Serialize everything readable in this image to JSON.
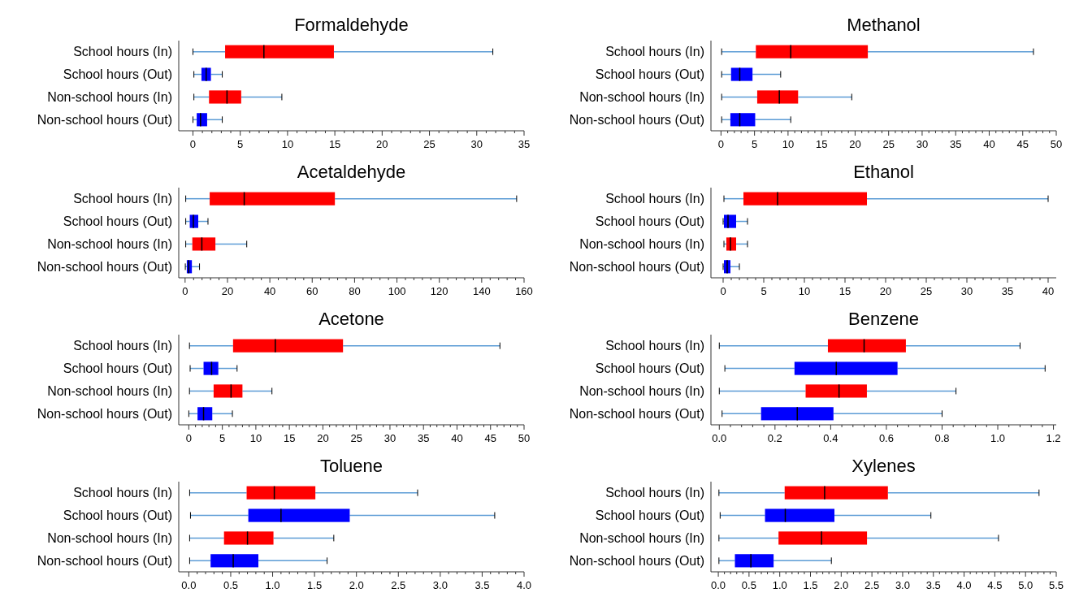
{
  "chart_data": [
    {
      "type": "box",
      "title": "Formaldehyde",
      "orientation": "horizontal",
      "categories": [
        "School hours (In)",
        "School hours (Out)",
        "Non-school hours (In)",
        "Non-school hours (Out)"
      ],
      "colors": [
        "#ff0000",
        "#0000ff",
        "#ff0000",
        "#0000ff"
      ],
      "xlim": [
        -1.5,
        35
      ],
      "xticks": [
        0,
        5,
        10,
        15,
        20,
        25,
        30,
        35
      ],
      "boxes": [
        {
          "low": 0,
          "q1": 3.4,
          "median": 7.5,
          "q3": 14.9,
          "high": 31.7
        },
        {
          "low": 0.1,
          "q1": 0.9,
          "median": 1.4,
          "q3": 1.9,
          "high": 3.1
        },
        {
          "low": 0.1,
          "q1": 1.7,
          "median": 3.6,
          "q3": 5.1,
          "high": 9.4
        },
        {
          "low": 0,
          "q1": 0.4,
          "median": 0.8,
          "q3": 1.5,
          "high": 3.1
        }
      ]
    },
    {
      "type": "box",
      "title": "Methanol",
      "orientation": "horizontal",
      "categories": [
        "School hours (In)",
        "School hours (Out)",
        "Non-school hours (In)",
        "Non-school hours (Out)"
      ],
      "colors": [
        "#ff0000",
        "#0000ff",
        "#ff0000",
        "#0000ff"
      ],
      "xlim": [
        -1.5,
        50
      ],
      "xticks": [
        0,
        5,
        10,
        15,
        20,
        25,
        30,
        35,
        40,
        45,
        50
      ],
      "boxes": [
        {
          "low": 0.1,
          "q1": 5.2,
          "median": 10.4,
          "q3": 21.9,
          "high": 46.6
        },
        {
          "low": 0.1,
          "q1": 1.5,
          "median": 2.8,
          "q3": 4.7,
          "high": 8.9
        },
        {
          "low": 0.1,
          "q1": 5.4,
          "median": 8.7,
          "q3": 11.5,
          "high": 19.5
        },
        {
          "low": 0.1,
          "q1": 1.4,
          "median": 2.8,
          "q3": 5.1,
          "high": 10.4
        }
      ]
    },
    {
      "type": "box",
      "title": "Acetaldehyde",
      "orientation": "horizontal",
      "categories": [
        "School hours (In)",
        "School hours (Out)",
        "Non-school hours (In)",
        "Non-school hours (Out)"
      ],
      "colors": [
        "#ff0000",
        "#0000ff",
        "#ff0000",
        "#0000ff"
      ],
      "xlim": [
        -3,
        160
      ],
      "xticks": [
        0,
        20,
        40,
        60,
        80,
        100,
        120,
        140,
        160
      ],
      "boxes": [
        {
          "low": 0.3,
          "q1": 11.6,
          "median": 27.9,
          "q3": 70.7,
          "high": 156.5
        },
        {
          "low": 0.3,
          "q1": 2.2,
          "median": 3.9,
          "q3": 6.2,
          "high": 10.8
        },
        {
          "low": 0.3,
          "q1": 3.4,
          "median": 7.9,
          "q3": 14.3,
          "high": 29.1
        },
        {
          "low": 0.1,
          "q1": 0.8,
          "median": 1.7,
          "q3": 3.2,
          "high": 6.8
        }
      ]
    },
    {
      "type": "box",
      "title": "Ethanol",
      "orientation": "horizontal",
      "categories": [
        "School hours (In)",
        "School hours (Out)",
        "Non-school hours (In)",
        "Non-school hours (Out)"
      ],
      "colors": [
        "#ff0000",
        "#0000ff",
        "#ff0000",
        "#0000ff"
      ],
      "xlim": [
        -1.5,
        41
      ],
      "xticks": [
        0,
        5,
        10,
        15,
        20,
        25,
        30,
        35,
        40
      ],
      "boxes": [
        {
          "low": 0.1,
          "q1": 2.5,
          "median": 6.7,
          "q3": 17.7,
          "high": 40
        },
        {
          "low": 0,
          "q1": 0.1,
          "median": 0.6,
          "q3": 1.6,
          "high": 3
        },
        {
          "low": 0.1,
          "q1": 0.4,
          "median": 0.9,
          "q3": 1.6,
          "high": 3
        },
        {
          "low": 0,
          "q1": 0.1,
          "median": 0.5,
          "q3": 0.9,
          "high": 2
        }
      ]
    },
    {
      "type": "box",
      "title": "Acetone",
      "orientation": "horizontal",
      "categories": [
        "School hours (In)",
        "School hours (Out)",
        "Non-school hours (In)",
        "Non-school hours (Out)"
      ],
      "colors": [
        "#ff0000",
        "#0000ff",
        "#ff0000",
        "#0000ff"
      ],
      "xlim": [
        -1.5,
        50
      ],
      "xticks": [
        0,
        5,
        10,
        15,
        20,
        25,
        30,
        35,
        40,
        45,
        50
      ],
      "boxes": [
        {
          "low": 0.1,
          "q1": 6.6,
          "median": 12.9,
          "q3": 23,
          "high": 46.4
        },
        {
          "low": 0.2,
          "q1": 2.2,
          "median": 3.4,
          "q3": 4.4,
          "high": 7.2
        },
        {
          "low": 0.1,
          "q1": 3.7,
          "median": 6.3,
          "q3": 8,
          "high": 12.4
        },
        {
          "low": 0,
          "q1": 1.3,
          "median": 2.2,
          "q3": 3.5,
          "high": 6.5
        }
      ]
    },
    {
      "type": "box",
      "title": "Benzene",
      "orientation": "horizontal",
      "categories": [
        "School hours (In)",
        "School hours (Out)",
        "Non-school hours (In)",
        "Non-school hours (Out)"
      ],
      "colors": [
        "#ff0000",
        "#0000ff",
        "#ff0000",
        "#0000ff"
      ],
      "xlim": [
        -0.03,
        1.21
      ],
      "xticks": [
        {
          "value": 0,
          "label": "0.0"
        },
        0.2,
        0.4,
        0.6,
        0.8,
        {
          "value": 1,
          "label": "1.0"
        },
        1.2
      ],
      "boxes": [
        {
          "low": 0,
          "q1": 0.39,
          "median": 0.52,
          "q3": 0.67,
          "high": 1.08
        },
        {
          "low": 0.02,
          "q1": 0.27,
          "median": 0.42,
          "q3": 0.64,
          "high": 1.17
        },
        {
          "low": 0,
          "q1": 0.31,
          "median": 0.43,
          "q3": 0.53,
          "high": 0.85
        },
        {
          "low": 0.01,
          "q1": 0.15,
          "median": 0.28,
          "q3": 0.41,
          "high": 0.8
        }
      ]
    },
    {
      "type": "box",
      "title": "Toluene",
      "orientation": "horizontal",
      "categories": [
        "School hours (In)",
        "School hours (Out)",
        "Non-school hours (In)",
        "Non-school hours (Out)"
      ],
      "colors": [
        "#ff0000",
        "#0000ff",
        "#ff0000",
        "#0000ff"
      ],
      "xlim": [
        -0.12,
        4
      ],
      "xticks": [
        {
          "value": 0,
          "label": "0.0"
        },
        0.5,
        {
          "value": 1,
          "label": "1.0"
        },
        1.5,
        {
          "value": 2,
          "label": "2.0"
        },
        2.5,
        {
          "value": 3,
          "label": "3.0"
        },
        3.5,
        {
          "value": 4,
          "label": "4.0"
        }
      ],
      "boxes": [
        {
          "low": 0.01,
          "q1": 0.69,
          "median": 1.02,
          "q3": 1.51,
          "high": 2.73
        },
        {
          "low": 0.02,
          "q1": 0.71,
          "median": 1.1,
          "q3": 1.92,
          "high": 3.65
        },
        {
          "low": 0.01,
          "q1": 0.42,
          "median": 0.7,
          "q3": 1.01,
          "high": 1.73
        },
        {
          "low": 0.01,
          "q1": 0.26,
          "median": 0.53,
          "q3": 0.83,
          "high": 1.65
        }
      ]
    },
    {
      "type": "box",
      "title": "Xylenes",
      "orientation": "horizontal",
      "categories": [
        "School hours (In)",
        "School hours (Out)",
        "Non-school hours (In)",
        "Non-school hours (Out)"
      ],
      "colors": [
        "#ff0000",
        "#0000ff",
        "#ff0000",
        "#0000ff"
      ],
      "xlim": [
        -0.12,
        5.5
      ],
      "xticks": [
        {
          "value": 0,
          "label": "0.0"
        },
        0.5,
        {
          "value": 1,
          "label": "1.0"
        },
        1.5,
        {
          "value": 2,
          "label": "2.0"
        },
        2.5,
        {
          "value": 3,
          "label": "3.0"
        },
        3.5,
        {
          "value": 4,
          "label": "4.0"
        },
        4.5,
        {
          "value": 5,
          "label": "5.0"
        },
        5.5
      ],
      "boxes": [
        {
          "low": 0.01,
          "q1": 1.08,
          "median": 1.73,
          "q3": 2.76,
          "high": 5.22
        },
        {
          "low": 0.03,
          "q1": 0.76,
          "median": 1.09,
          "q3": 1.89,
          "high": 3.46
        },
        {
          "low": 0.01,
          "q1": 0.98,
          "median": 1.68,
          "q3": 2.42,
          "high": 4.56
        },
        {
          "low": 0.01,
          "q1": 0.27,
          "median": 0.53,
          "q3": 0.9,
          "high": 1.84
        }
      ]
    }
  ]
}
